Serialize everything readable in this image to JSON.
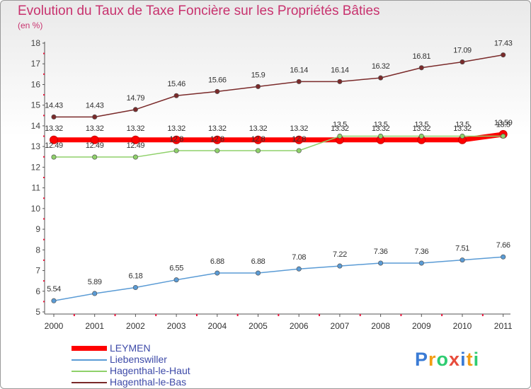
{
  "chart_data": {
    "type": "line",
    "title": "Evolution du Taux de Taxe Foncière sur les Propriétés Bâties",
    "subtitle": "(en %)",
    "categories": [
      "2000",
      "2001",
      "2002",
      "2003",
      "2004",
      "2005",
      "2006",
      "2007",
      "2008",
      "2009",
      "2010",
      "2011"
    ],
    "ylim": [
      5,
      18
    ],
    "yticks": [
      "5",
      "6",
      "7",
      "8",
      "9",
      "10",
      "11",
      "12",
      "13",
      "14",
      "15",
      "16",
      "17",
      "18"
    ],
    "grid": false,
    "series": [
      {
        "name": "LEYMEN",
        "color": "#ff0000",
        "values": [
          13.32,
          13.32,
          13.32,
          13.32,
          13.32,
          13.32,
          13.32,
          13.32,
          13.32,
          13.32,
          13.32,
          13.59
        ],
        "labels": [
          "13.32",
          "13.32",
          "13.32",
          "13.32",
          "13.32",
          "13.32",
          "13.32",
          "13.32",
          "13.32",
          "13.32",
          "13.32",
          "13.59"
        ]
      },
      {
        "name": "Liebenswiller",
        "color": "#5a9bd5",
        "values": [
          5.54,
          5.89,
          6.18,
          6.55,
          6.88,
          6.88,
          7.08,
          7.22,
          7.36,
          7.36,
          7.51,
          7.66
        ],
        "labels": [
          "5.54",
          "5.89",
          "6.18",
          "6.55",
          "6.88",
          "6.88",
          "7.08",
          "7.22",
          "7.36",
          "7.36",
          "7.51",
          "7.66"
        ]
      },
      {
        "name": "Hagenthal-le-Haut",
        "color": "#8fd16a",
        "values": [
          12.49,
          12.49,
          12.49,
          12.8,
          12.8,
          12.8,
          12.8,
          13.5,
          13.5,
          13.5,
          13.5,
          13.5
        ],
        "labels": [
          "12.49",
          "12.49",
          "12.49",
          "12.8",
          "12.8",
          "12.8",
          "12.8",
          "13.5",
          "13.5",
          "13.5",
          "13.5",
          "13.5"
        ]
      },
      {
        "name": "Hagenthal-le-Bas",
        "color": "#7a2a2a",
        "values": [
          14.43,
          14.43,
          14.79,
          15.46,
          15.66,
          15.9,
          16.14,
          16.14,
          16.32,
          16.81,
          17.09,
          17.43
        ],
        "labels": [
          "14.43",
          "14.43",
          "14.79",
          "15.46",
          "15.66",
          "15.9",
          "16.14",
          "16.14",
          "16.32",
          "16.81",
          "17.09",
          "17.43"
        ]
      }
    ]
  },
  "logo": {
    "text": "Proxiti",
    "letters": [
      "P",
      "r",
      "o",
      "x",
      "i",
      "t",
      "i"
    ],
    "colors": [
      "#3a7bd5",
      "#f39c12",
      "#2ecc71",
      "#e74c3c",
      "#3a7bd5",
      "#f39c12",
      "#2ecc71"
    ]
  }
}
